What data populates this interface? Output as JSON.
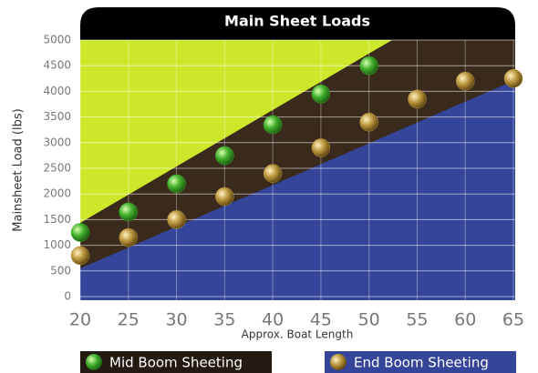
{
  "chart_data": {
    "type": "scatter",
    "title": "Main Sheet Loads",
    "x_label": "Approx. Boat Length",
    "y_label": "Mainsheet Load (lbs)",
    "xlim": [
      20,
      65
    ],
    "xticks": [
      20,
      25,
      30,
      35,
      40,
      45,
      50,
      55,
      60,
      65
    ],
    "ylim": [
      0,
      5000
    ],
    "yticks": [
      0,
      500,
      1000,
      1500,
      2000,
      2500,
      3000,
      3500,
      4000,
      4500,
      5000
    ],
    "grid": true,
    "series": [
      {
        "name": "Mid Boom Sheeting",
        "color": "#3fae2a",
        "x": [
          20,
          25,
          30,
          35,
          40,
          45,
          50
        ],
        "values": [
          1250,
          1650,
          2200,
          2750,
          3350,
          3950,
          4500
        ]
      },
      {
        "name": "End Boom Sheeting",
        "color": "#b8953c",
        "x": [
          20,
          25,
          30,
          35,
          40,
          45,
          50,
          55,
          60,
          65
        ],
        "values": [
          800,
          1150,
          1500,
          1950,
          2400,
          2900,
          3400,
          3850,
          4200,
          4250
        ]
      }
    ]
  }
}
